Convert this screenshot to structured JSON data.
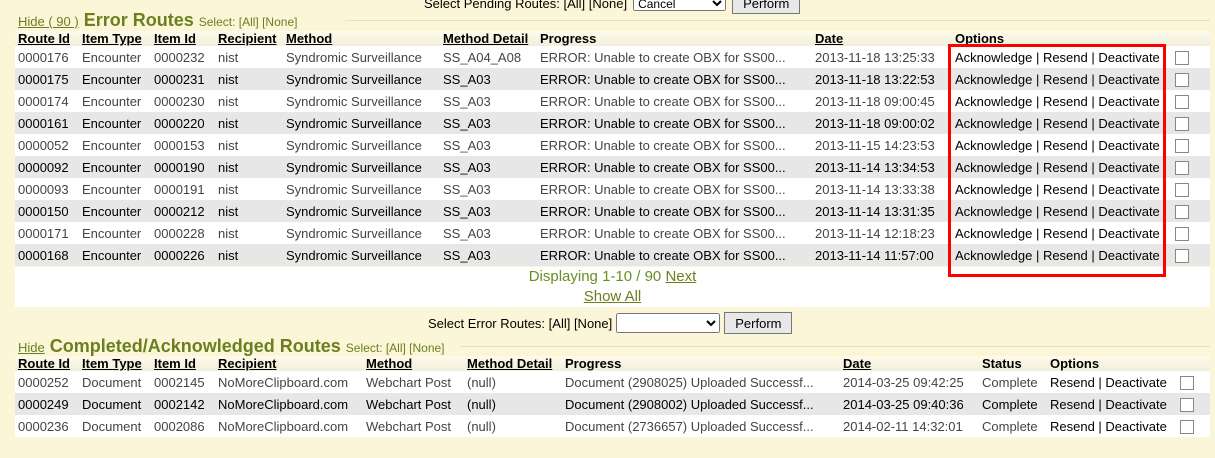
{
  "pending": {
    "label": "Select Pending Routes: [All] [None]",
    "select_value": "Cancel",
    "perform": "Perform"
  },
  "error": {
    "hide": "Hide ( 90 )",
    "title": "Error Routes",
    "select": "Select: [All] [None]",
    "headers": [
      "Route Id",
      "Item Type",
      "Item Id",
      "Recipient",
      "Method",
      "Method Detail",
      "Progress",
      "Date",
      "Options"
    ],
    "rows": [
      [
        "0000176",
        "Encounter",
        "0000232",
        "nist",
        "Syndromic Surveillance",
        "SS_A04_A08",
        "ERROR: Unable to create OBX for SS00...",
        "2013-11-18 13:25:33"
      ],
      [
        "0000175",
        "Encounter",
        "0000231",
        "nist",
        "Syndromic Surveillance",
        "SS_A03",
        "ERROR: Unable to create OBX for SS00...",
        "2013-11-18 13:22:53"
      ],
      [
        "0000174",
        "Encounter",
        "0000230",
        "nist",
        "Syndromic Surveillance",
        "SS_A03",
        "ERROR: Unable to create OBX for SS00...",
        "2013-11-18 09:00:45"
      ],
      [
        "0000161",
        "Encounter",
        "0000220",
        "nist",
        "Syndromic Surveillance",
        "SS_A03",
        "ERROR: Unable to create OBX for SS00...",
        "2013-11-18 09:00:02"
      ],
      [
        "0000052",
        "Encounter",
        "0000153",
        "nist",
        "Syndromic Surveillance",
        "SS_A03",
        "ERROR: Unable to create OBX for SS00...",
        "2013-11-15 14:23:53"
      ],
      [
        "0000092",
        "Encounter",
        "0000190",
        "nist",
        "Syndromic Surveillance",
        "SS_A03",
        "ERROR: Unable to create OBX for SS00...",
        "2013-11-14 13:34:53"
      ],
      [
        "0000093",
        "Encounter",
        "0000191",
        "nist",
        "Syndromic Surveillance",
        "SS_A03",
        "ERROR: Unable to create OBX for SS00...",
        "2013-11-14 13:33:38"
      ],
      [
        "0000150",
        "Encounter",
        "0000212",
        "nist",
        "Syndromic Surveillance",
        "SS_A03",
        "ERROR: Unable to create OBX for SS00...",
        "2013-11-14 13:31:35"
      ],
      [
        "0000171",
        "Encounter",
        "0000228",
        "nist",
        "Syndromic Surveillance",
        "SS_A03",
        "ERROR: Unable to create OBX for SS00...",
        "2013-11-14 12:18:23"
      ],
      [
        "0000168",
        "Encounter",
        "0000226",
        "nist",
        "Syndromic Surveillance",
        "SS_A03",
        "ERROR: Unable to create OBX for SS00...",
        "2013-11-14 11:57:00"
      ]
    ],
    "options": [
      "Acknowledge",
      "Resend",
      "Deactivate"
    ],
    "displaying": "Displaying 1-10 / 90",
    "next": "Next",
    "show_all": "Show All"
  },
  "error_actions": {
    "label": "Select Error Routes: [All] [None]",
    "select_value": "",
    "perform": "Perform"
  },
  "completed": {
    "hide": "Hide",
    "title": "Completed/Acknowledged Routes",
    "select": "Select: [All] [None]",
    "headers": [
      "Route Id",
      "Item Type",
      "Item Id",
      "Recipient",
      "Method",
      "Method Detail",
      "Progress",
      "Date",
      "Status",
      "Options"
    ],
    "rows": [
      [
        "0000252",
        "Document",
        "0002145",
        "NoMoreClipboard.com",
        "Webchart Post",
        "(null)",
        "Document (2908025) Uploaded Successf...",
        "2014-03-25 09:42:25",
        "Complete"
      ],
      [
        "0000249",
        "Document",
        "0002142",
        "NoMoreClipboard.com",
        "Webchart Post",
        "(null)",
        "Document (2908002) Uploaded Successf...",
        "2014-03-25 09:40:36",
        "Complete"
      ],
      [
        "0000236",
        "Document",
        "0002086",
        "NoMoreClipboard.com",
        "Webchart Post",
        "(null)",
        "Document (2736657) Uploaded Successf...",
        "2014-02-11 14:32:01",
        "Complete"
      ]
    ],
    "options": [
      "Resend",
      "Deactivate"
    ]
  },
  "colors": {
    "accent": "#6b7f1e",
    "highlight": "#ff0000"
  }
}
